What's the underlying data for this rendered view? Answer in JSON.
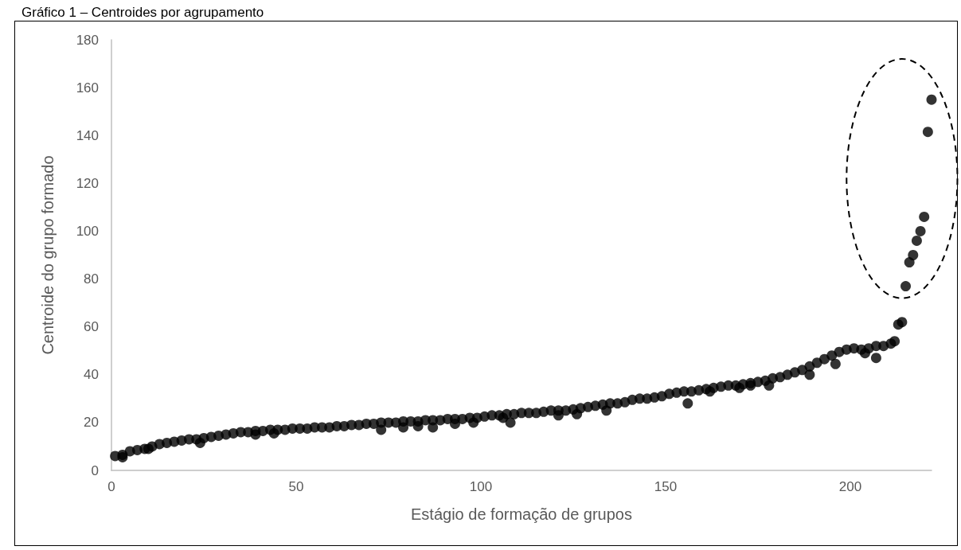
{
  "chart_data": {
    "type": "scatter",
    "title": "Gráfico 1 – Centroides por agrupamento",
    "xlabel": "Estágio de formação de grupos",
    "ylabel": "Centroide do grupo formado",
    "color": "#000000",
    "marker": "circle",
    "grid": false,
    "xlim": [
      0,
      222
    ],
    "xticks": [
      0,
      50,
      100,
      150,
      200
    ],
    "ylim": [
      0,
      180
    ],
    "yticks": [
      0,
      20,
      40,
      60,
      80,
      100,
      120,
      140,
      160,
      180
    ],
    "x": [
      1,
      3,
      5,
      7,
      9,
      11,
      13,
      15,
      17,
      19,
      21,
      23,
      25,
      27,
      29,
      31,
      33,
      35,
      37,
      39,
      41,
      43,
      45,
      47,
      49,
      51,
      53,
      55,
      57,
      59,
      61,
      63,
      65,
      67,
      69,
      71,
      73,
      75,
      77,
      79,
      81,
      83,
      85,
      87,
      89,
      91,
      93,
      95,
      97,
      99,
      101,
      103,
      105,
      107,
      109,
      111,
      113,
      115,
      117,
      119,
      121,
      123,
      125,
      127,
      129,
      131,
      133,
      135,
      137,
      139,
      141,
      143,
      145,
      147,
      149,
      151,
      153,
      155,
      157,
      159,
      161,
      163,
      165,
      167,
      169,
      171,
      173,
      175,
      177,
      179,
      181,
      183,
      185,
      187,
      189,
      191,
      193,
      195,
      197,
      199,
      201,
      203,
      204,
      205,
      207,
      209,
      211,
      212,
      213,
      214,
      215,
      216,
      217,
      218,
      219,
      220,
      221,
      222,
      3,
      10,
      24,
      39,
      44,
      73,
      79,
      83,
      87,
      93,
      98,
      106,
      108,
      121,
      126,
      134,
      156,
      162,
      170,
      173,
      178,
      189,
      196,
      207
    ],
    "values": [
      6,
      6.5,
      8,
      8.5,
      9,
      10,
      11,
      11.5,
      12,
      12.5,
      13,
      13,
      13.5,
      14,
      14.5,
      15,
      15.5,
      16,
      16,
      16.5,
      16.5,
      17,
      17,
      17,
      17.5,
      17.5,
      17.5,
      18,
      18,
      18,
      18.5,
      18.5,
      19,
      19,
      19.5,
      19.5,
      20,
      20,
      20,
      20.5,
      20.5,
      20.5,
      21,
      21,
      21,
      21.5,
      21.5,
      21.5,
      22,
      22,
      22.5,
      23,
      23,
      23.5,
      23.5,
      24,
      24,
      24,
      24.5,
      25,
      25,
      25,
      25.5,
      26,
      26.5,
      27,
      27.5,
      28,
      28,
      28.5,
      29.5,
      30,
      30,
      30.5,
      31,
      32,
      32.5,
      33,
      33,
      33.5,
      34,
      34.5,
      35,
      35.5,
      35.5,
      36,
      36.5,
      37,
      37.5,
      38.5,
      39,
      40,
      41,
      42,
      43.5,
      45,
      46.5,
      48,
      49.5,
      50.5,
      51,
      50.5,
      49,
      51,
      52,
      52,
      53,
      54,
      61,
      62,
      77,
      87,
      90,
      96,
      100,
      106,
      141.5,
      155,
      5.5,
      9,
      11.5,
      15,
      15.5,
      17,
      18,
      18.5,
      18,
      19.5,
      20,
      22,
      20,
      23,
      23.5,
      25,
      28,
      33,
      34.5,
      35.5,
      35.5,
      40,
      44.5,
      47
    ]
  }
}
